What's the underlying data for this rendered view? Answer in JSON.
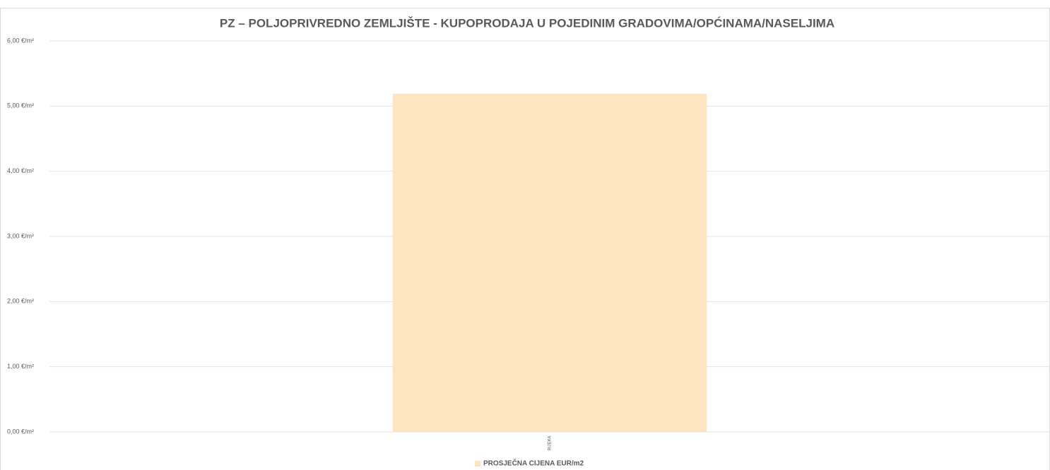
{
  "chart_data": {
    "type": "bar",
    "title": "PZ – POLJOPRIVREDNO ZEMLJIŠTE - KUPOPRODAJA  U POJEDINIM GRADOVIMA/OPĆINAMA/NASELJIMA",
    "categories": [
      "RIJEKA"
    ],
    "series": [
      {
        "name": "PROSJEČNA CIJENA EUR/m2",
        "color": "#fde5c2",
        "values": [
          5.19
        ]
      }
    ],
    "ylim": [
      0,
      6
    ],
    "yticks": [
      {
        "value": 0,
        "label": "0,00 €/m²"
      },
      {
        "value": 1,
        "label": "1,00 €/m²"
      },
      {
        "value": 2,
        "label": "2,00 €/m²"
      },
      {
        "value": 3,
        "label": "3,00 €/m²"
      },
      {
        "value": 4,
        "label": "4,00 €/m²"
      },
      {
        "value": 5,
        "label": "5,00 €/m²"
      },
      {
        "value": 6,
        "label": "6,00 €/m²"
      }
    ],
    "grid": true,
    "legend": "bottom"
  }
}
